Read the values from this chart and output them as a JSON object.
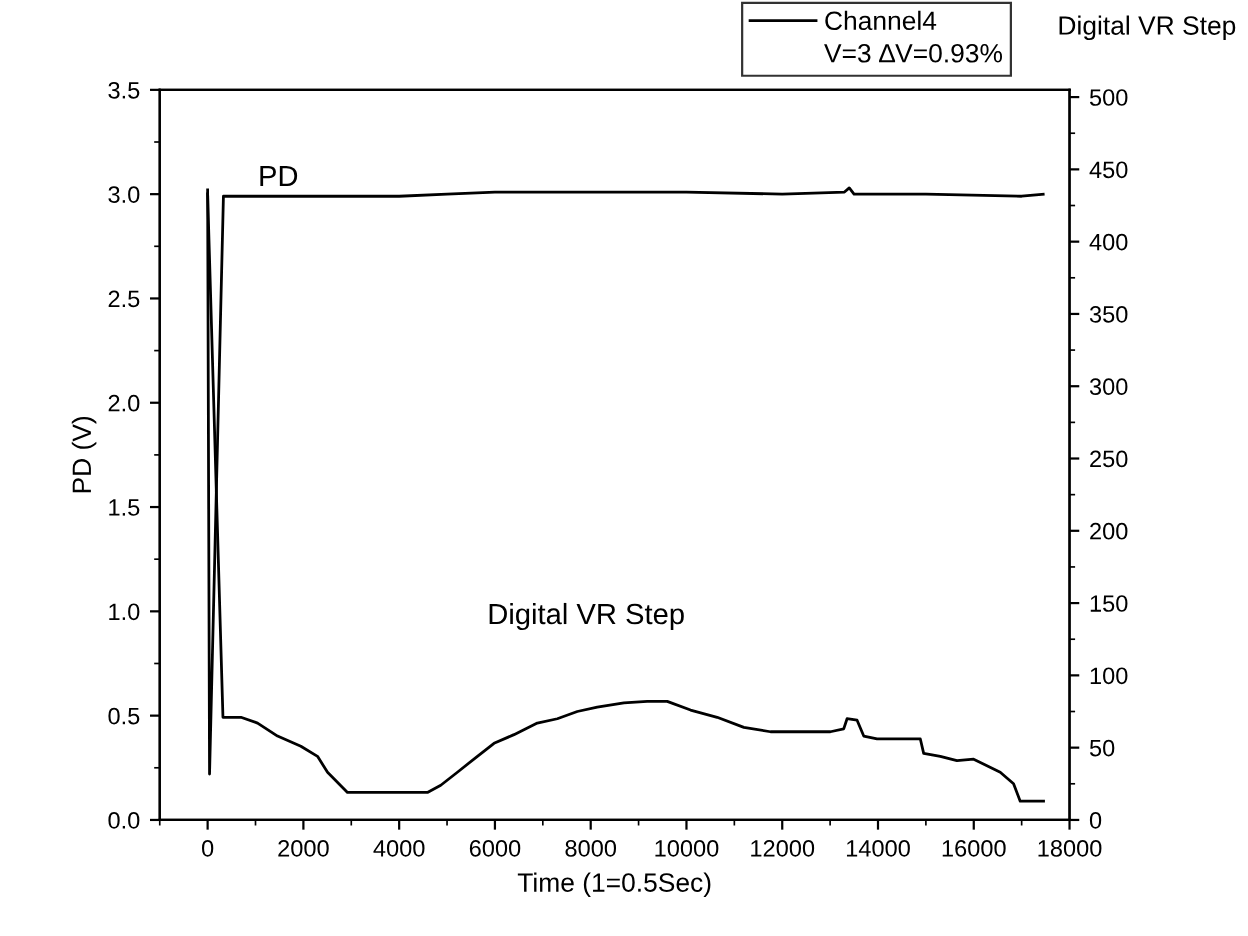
{
  "chart_data": {
    "type": "line",
    "xlabel": "Time (1=0.5Sec)",
    "ylabel": "PD (V)",
    "y2label": "Digital VR Step",
    "series": [
      {
        "name": "Channel4",
        "color": "#000000",
        "x": [
          0,
          40,
          330,
          2000,
          4000,
          5000,
          6000,
          8000,
          10000,
          12000,
          13300,
          13400,
          13500,
          15000,
          17000,
          17450
        ],
        "values": [
          3.02,
          0.22,
          2.99,
          2.99,
          2.99,
          3.0,
          3.01,
          3.01,
          3.01,
          3.0,
          3.01,
          3.03,
          3.0,
          3.0,
          2.99,
          3.0
        ]
      },
      {
        "color": "#000000",
        "axis": "y2",
        "x": [
          0,
          320,
          695,
          1043,
          1460,
          1947,
          2295,
          2504,
          2921,
          4590,
          4869,
          5216,
          5634,
          5981,
          6398,
          6885,
          7303,
          7720,
          8137,
          8694,
          9181,
          9598,
          10085,
          10641,
          11198,
          11754,
          13006,
          13284,
          13354,
          13563,
          13702,
          13980,
          14884,
          14954,
          15301,
          15649,
          15997,
          16553,
          16831,
          16970,
          17457
        ],
        "values": [
          433,
          71,
          71,
          67,
          58,
          51,
          44,
          33,
          19,
          19,
          24,
          33,
          44,
          53,
          59,
          67,
          70,
          75,
          78,
          81,
          82,
          82,
          76,
          71,
          64,
          61,
          61,
          63,
          70,
          69,
          58,
          56,
          56,
          46,
          44,
          41,
          42,
          33,
          25,
          13,
          13
        ]
      }
    ],
    "annotations": [
      "PD",
      "Digital VR Step",
      "V=3 ∆V=0.93%"
    ],
    "xlim": [
      -1000,
      18000
    ],
    "xticks": [
      0,
      2000,
      4000,
      6000,
      8000,
      10000,
      12000,
      14000,
      16000,
      18000
    ],
    "ylim": [
      0,
      3.5
    ],
    "yticks": [
      {
        "value": 0,
        "label": "0.0"
      },
      {
        "value": 0.5,
        "label": "0.5"
      },
      {
        "value": 1,
        "label": "1.0"
      },
      {
        "value": 1.5,
        "label": "1.5"
      },
      {
        "value": 2,
        "label": "2.0"
      },
      {
        "value": 2.5,
        "label": "2.5"
      },
      {
        "value": 3,
        "label": "3.0"
      },
      {
        "value": 3.5,
        "label": "3.5"
      }
    ],
    "y2lim": [
      0,
      505
    ],
    "y2ticks": [
      0,
      50,
      100,
      150,
      200,
      250,
      300,
      350,
      400,
      450,
      500
    ],
    "legend": "top right",
    "grid": false,
    "marker": "none",
    "line_style": "solid"
  }
}
